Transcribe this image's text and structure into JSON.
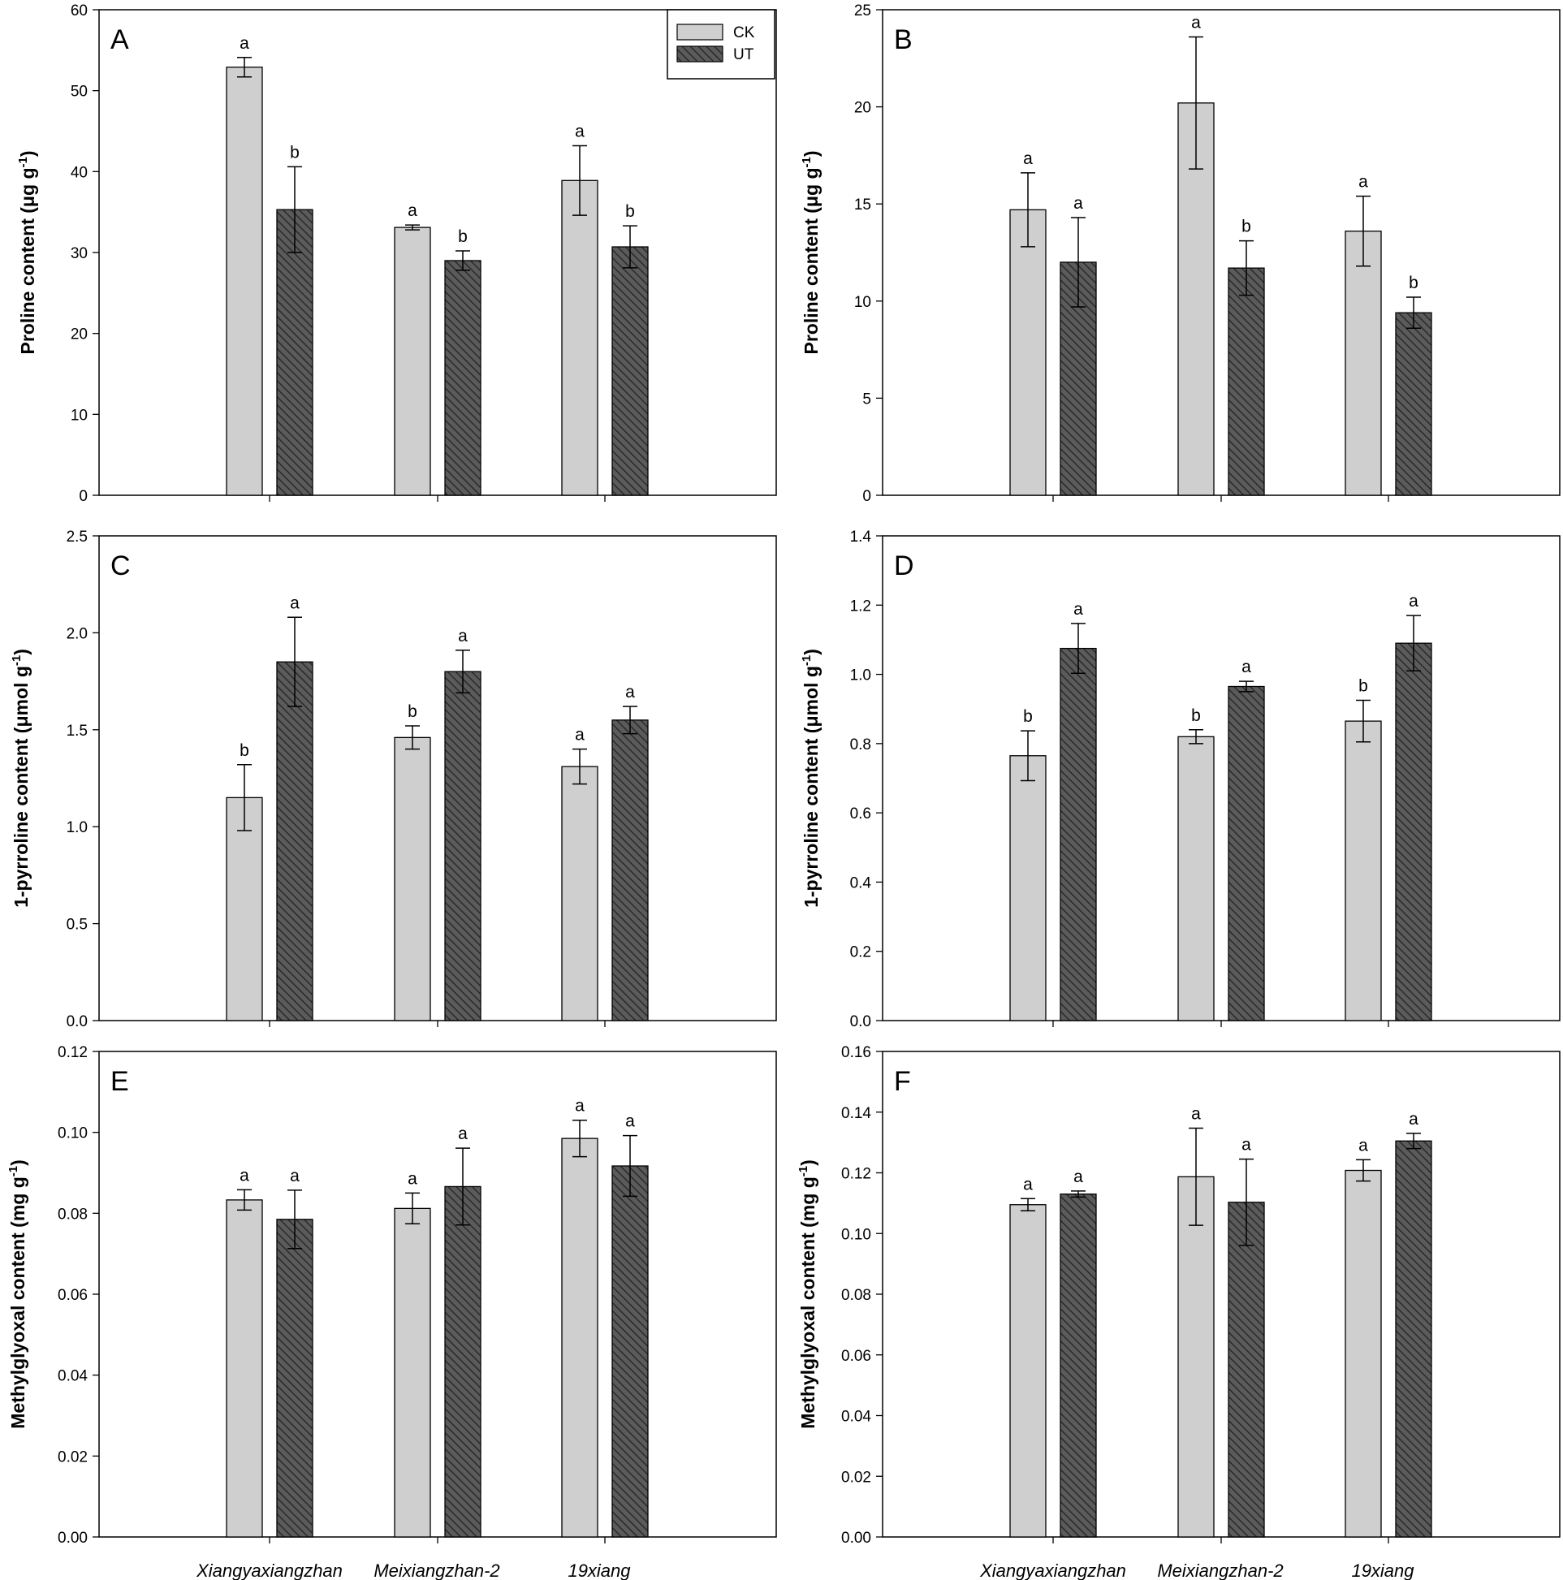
{
  "legend": {
    "entries": [
      "CK",
      "UT"
    ]
  },
  "colors": {
    "ck_fill": "#cfcfcf",
    "ut_fill": "#5b5b5b",
    "ut_hatch": "#2a2a2a",
    "stroke": "#000000"
  },
  "categories": [
    "Xiangyaxiangzhan",
    "Meixiangzhan-2",
    "19xiang"
  ],
  "chart_data": [
    {
      "type": "bar",
      "panel": "A",
      "ylabel_main": "Proline content (μg g",
      "ylabel_sup": "-1",
      "ylabel_close": ")",
      "ylim": [
        0,
        60
      ],
      "ticks": [
        0,
        10,
        20,
        30,
        40,
        50,
        60
      ],
      "tick_labels": [
        "0",
        "10",
        "20",
        "30",
        "40",
        "50",
        "60"
      ],
      "categories": [
        "Xiangyaxiangzhan",
        "Meixiangzhan-2",
        "19xiang"
      ],
      "series": [
        {
          "name": "CK",
          "values": [
            52.9,
            33.1,
            38.9
          ],
          "errors": [
            1.2,
            0.3,
            4.3
          ],
          "letters": [
            "a",
            "a",
            "a"
          ]
        },
        {
          "name": "UT",
          "values": [
            35.3,
            29.0,
            30.7
          ],
          "errors": [
            5.3,
            1.2,
            2.6
          ],
          "letters": [
            "b",
            "b",
            "b"
          ]
        }
      ]
    },
    {
      "type": "bar",
      "panel": "B",
      "ylabel_main": "Proline content (μg g",
      "ylabel_sup": "-1",
      "ylabel_close": ")",
      "ylim": [
        0,
        25
      ],
      "ticks": [
        0,
        5,
        10,
        15,
        20,
        25
      ],
      "tick_labels": [
        "0",
        "5",
        "10",
        "15",
        "20",
        "25"
      ],
      "categories": [
        "Xiangyaxiangzhan",
        "Meixiangzhan-2",
        "19xiang"
      ],
      "series": [
        {
          "name": "CK",
          "values": [
            14.7,
            20.2,
            13.6
          ],
          "errors": [
            1.9,
            3.4,
            1.8
          ],
          "letters": [
            "a",
            "a",
            "a"
          ]
        },
        {
          "name": "UT",
          "values": [
            12.0,
            11.7,
            9.4
          ],
          "errors": [
            2.3,
            1.4,
            0.8
          ],
          "letters": [
            "a",
            "b",
            "b"
          ]
        }
      ]
    },
    {
      "type": "bar",
      "panel": "C",
      "ylabel_main": "1-pyrroline content (μmol g",
      "ylabel_sup": "-1",
      "ylabel_close": ")",
      "ylim": [
        0,
        2.5
      ],
      "ticks": [
        0,
        0.5,
        1.0,
        1.5,
        2.0,
        2.5
      ],
      "tick_labels": [
        "0.0",
        "0.5",
        "1.0",
        "1.5",
        "2.0",
        "2.5"
      ],
      "categories": [
        "Xiangyaxiangzhan",
        "Meixiangzhan-2",
        "19xiang"
      ],
      "series": [
        {
          "name": "CK",
          "values": [
            1.15,
            1.46,
            1.31
          ],
          "errors": [
            0.17,
            0.06,
            0.09
          ],
          "letters": [
            "b",
            "b",
            "a"
          ]
        },
        {
          "name": "UT",
          "values": [
            1.85,
            1.8,
            1.55
          ],
          "errors": [
            0.23,
            0.11,
            0.07
          ],
          "letters": [
            "a",
            "a",
            "a"
          ]
        }
      ]
    },
    {
      "type": "bar",
      "panel": "D",
      "ylabel_main": "1-pyrroline content (μmol g",
      "ylabel_sup": "-1",
      "ylabel_close": ")",
      "ylim": [
        0,
        1.4
      ],
      "ticks": [
        0,
        0.2,
        0.4,
        0.6,
        0.8,
        1.0,
        1.2,
        1.4
      ],
      "tick_labels": [
        "0.0",
        "0.2",
        "0.4",
        "0.6",
        "0.8",
        "1.0",
        "1.2",
        "1.4"
      ],
      "categories": [
        "Xiangyaxiangzhan",
        "Meixiangzhan-2",
        "19xiang"
      ],
      "series": [
        {
          "name": "CK",
          "values": [
            0.765,
            0.82,
            0.865
          ],
          "errors": [
            0.072,
            0.02,
            0.06
          ],
          "letters": [
            "b",
            "b",
            "b"
          ]
        },
        {
          "name": "UT",
          "values": [
            1.075,
            0.965,
            1.09
          ],
          "errors": [
            0.072,
            0.015,
            0.08
          ],
          "letters": [
            "a",
            "a",
            "a"
          ]
        }
      ]
    },
    {
      "type": "bar",
      "panel": "E",
      "ylabel_main": "Methylglyoxal content (mg g",
      "ylabel_sup": "-1",
      "ylabel_close": ")",
      "ylim": [
        0,
        0.12
      ],
      "ticks": [
        0,
        0.02,
        0.04,
        0.06,
        0.08,
        0.1,
        0.12
      ],
      "tick_labels": [
        "0.00",
        "0.02",
        "0.04",
        "0.06",
        "0.08",
        "0.10",
        "0.12"
      ],
      "categories": [
        "Xiangyaxiangzhan",
        "Meixiangzhan-2",
        "19xiang"
      ],
      "series": [
        {
          "name": "CK",
          "values": [
            0.0833,
            0.0812,
            0.0985
          ],
          "errors": [
            0.0025,
            0.0038,
            0.0045
          ],
          "letters": [
            "a",
            "a",
            "a"
          ]
        },
        {
          "name": "UT",
          "values": [
            0.0785,
            0.0866,
            0.0917
          ],
          "errors": [
            0.0072,
            0.0095,
            0.0075
          ],
          "letters": [
            "a",
            "a",
            "a"
          ]
        }
      ]
    },
    {
      "type": "bar",
      "panel": "F",
      "ylabel_main": "Methylglyoxal content (mg g",
      "ylabel_sup": "-1",
      "ylabel_close": ")",
      "ylim": [
        0,
        0.16
      ],
      "ticks": [
        0,
        0.02,
        0.04,
        0.06,
        0.08,
        0.1,
        0.12,
        0.14,
        0.16
      ],
      "tick_labels": [
        "0.00",
        "0.02",
        "0.04",
        "0.06",
        "0.08",
        "0.10",
        "0.12",
        "0.14",
        "0.16"
      ],
      "categories": [
        "Xiangyaxiangzhan",
        "Meixiangzhan-2",
        "19xiang"
      ],
      "series": [
        {
          "name": "CK",
          "values": [
            0.1095,
            0.1187,
            0.1208
          ],
          "errors": [
            0.002,
            0.016,
            0.0035
          ],
          "letters": [
            "a",
            "a",
            "a"
          ]
        },
        {
          "name": "UT",
          "values": [
            0.113,
            0.1103,
            0.1305
          ],
          "errors": [
            0.001,
            0.0142,
            0.0025
          ],
          "letters": [
            "a",
            "a",
            "a"
          ]
        }
      ]
    }
  ]
}
